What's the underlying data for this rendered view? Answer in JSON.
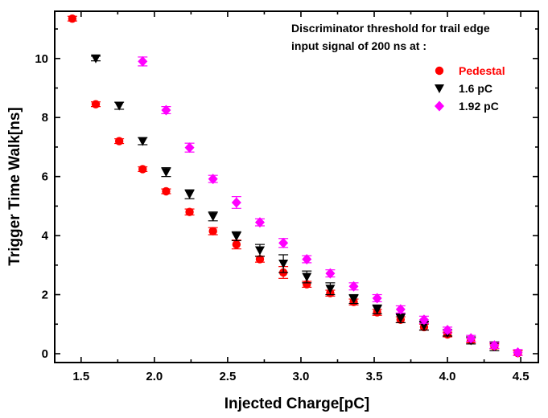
{
  "chart_data": {
    "type": "scatter",
    "title": "",
    "xlabel": "Injected Charge[pC]",
    "ylabel": "Trigger Time Walk[ns]",
    "xlim": [
      1.32,
      4.62
    ],
    "ylim": [
      -0.3,
      11.6
    ],
    "xticks": [
      "1.5",
      "2.0",
      "2.5",
      "3.0",
      "3.5",
      "4.0",
      "4.5"
    ],
    "yticks": [
      "0",
      "2",
      "4",
      "6",
      "8",
      "10"
    ],
    "annotation_lines": [
      "Discriminator threshold for trail edge",
      "input signal of 200 ns at :"
    ],
    "legend_position": "top-right",
    "series": [
      {
        "name": "Pedestal",
        "color": "#ff0000",
        "marker": "circle",
        "x": [
          1.44,
          1.6,
          1.76,
          1.92,
          2.08,
          2.24,
          2.4,
          2.56,
          2.72,
          2.88,
          3.04,
          3.2,
          3.36,
          3.52,
          3.68,
          3.84,
          4.0,
          4.16,
          4.32,
          4.48
        ],
        "y": [
          11.35,
          8.45,
          7.2,
          6.25,
          5.5,
          4.8,
          4.15,
          3.7,
          3.2,
          2.75,
          2.35,
          2.05,
          1.75,
          1.4,
          1.15,
          0.9,
          0.65,
          0.45,
          0.25,
          0.02
        ],
        "err": [
          0.08,
          0.08,
          0.08,
          0.08,
          0.08,
          0.1,
          0.12,
          0.15,
          0.1,
          0.2,
          0.1,
          0.1,
          0.1,
          0.1,
          0.1,
          0.1,
          0.08,
          0.08,
          0.08,
          0.08
        ]
      },
      {
        "name": "1.6 pC",
        "color": "#000000",
        "marker": "triangle-down",
        "x": [
          1.6,
          1.76,
          1.92,
          2.08,
          2.24,
          2.4,
          2.56,
          2.72,
          2.88,
          3.04,
          3.2,
          3.36,
          3.52,
          3.68,
          3.84,
          4.0,
          4.16,
          4.32
        ],
        "y": [
          10.0,
          8.4,
          7.2,
          6.15,
          5.4,
          4.65,
          3.98,
          3.5,
          3.05,
          2.6,
          2.2,
          1.85,
          1.5,
          1.2,
          0.95,
          0.7,
          0.45,
          0.25
        ],
        "err": [
          0.08,
          0.12,
          0.12,
          0.15,
          0.15,
          0.15,
          0.15,
          0.2,
          0.3,
          0.2,
          0.2,
          0.15,
          0.15,
          0.15,
          0.15,
          0.1,
          0.12,
          0.15
        ]
      },
      {
        "name": "1.92 pC",
        "color": "#ff00ff",
        "marker": "diamond",
        "x": [
          1.92,
          2.08,
          2.24,
          2.4,
          2.56,
          2.72,
          2.88,
          3.04,
          3.2,
          3.36,
          3.52,
          3.68,
          3.84,
          4.0,
          4.16,
          4.32,
          4.48
        ],
        "y": [
          9.9,
          8.25,
          6.98,
          5.92,
          5.12,
          4.45,
          3.75,
          3.2,
          2.72,
          2.28,
          1.88,
          1.5,
          1.15,
          0.8,
          0.52,
          0.28,
          0.04
        ],
        "err": [
          0.15,
          0.12,
          0.15,
          0.12,
          0.2,
          0.12,
          0.15,
          0.12,
          0.12,
          0.12,
          0.12,
          0.12,
          0.12,
          0.1,
          0.1,
          0.1,
          0.1
        ]
      }
    ]
  }
}
